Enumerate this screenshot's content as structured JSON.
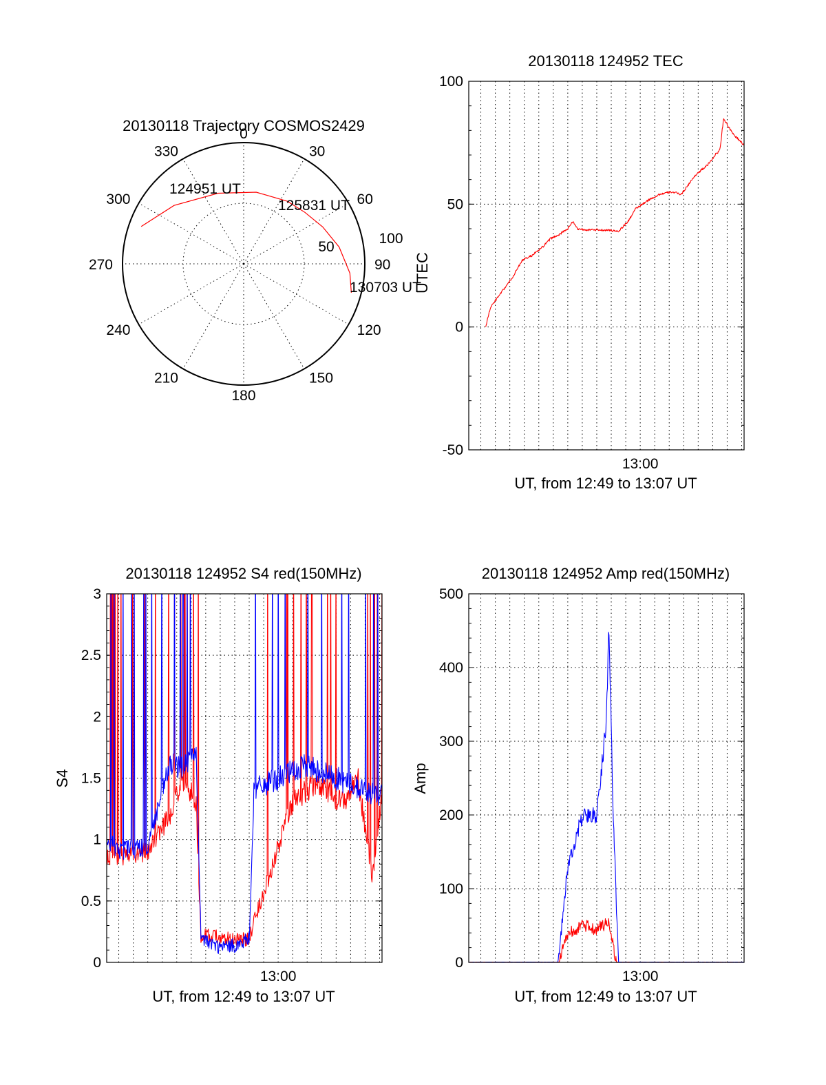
{
  "colors": {
    "red": "#ff0000",
    "blue": "#0000ff",
    "axes": "#000000"
  },
  "chart_data": [
    {
      "id": "trajectory",
      "type": "polar",
      "title": "20130118 Trajectory COSMOS2429",
      "angle_labels": [
        "0",
        "30",
        "60",
        "90",
        "120",
        "150",
        "180",
        "210",
        "240",
        "270",
        "300",
        "330"
      ],
      "radial_ticks": [
        50,
        100
      ],
      "radial_labels": [
        "50",
        "100"
      ],
      "rmax": 100,
      "grid": true,
      "annotations": [
        {
          "text": "124951 UT",
          "az": 290,
          "r": 90
        },
        {
          "text": "125831 UT",
          "az": 50,
          "r": 65
        },
        {
          "text": "130703 UT",
          "az": 105,
          "r": 92
        }
      ],
      "track": {
        "color": "#ff0000",
        "points": [
          [
            290,
            90
          ],
          [
            310,
            75
          ],
          [
            340,
            62
          ],
          [
            10,
            60
          ],
          [
            35,
            63
          ],
          [
            50,
            66
          ],
          [
            65,
            72
          ],
          [
            80,
            80
          ],
          [
            95,
            88
          ],
          [
            105,
            92
          ]
        ]
      }
    },
    {
      "id": "tec",
      "type": "line",
      "title": "20130118 124952 TEC",
      "xlabel": "UT, from 12:49 to 13:07 UT",
      "ylabel": "UTEC",
      "xlim": [
        "12:48:10",
        "13:07:10"
      ],
      "ylim": [
        -50,
        100
      ],
      "yticks": [
        -50,
        0,
        50,
        100
      ],
      "xticks": [
        {
          "t": "13:00",
          "label": "13:00"
        }
      ],
      "grid": true,
      "series": [
        {
          "color": "#ff0000",
          "x": [
            "12:49:20",
            "12:49:40",
            "12:50:10",
            "12:50:40",
            "12:51:10",
            "12:51:50",
            "12:52:30",
            "12:53:10",
            "12:53:50",
            "12:54:30",
            "12:55:00",
            "12:55:20",
            "12:55:40",
            "12:56:30",
            "12:57:30",
            "12:58:30",
            "12:59:10",
            "12:59:40",
            "13:00:10",
            "13:00:40",
            "13:01:20",
            "13:02:10",
            "13:02:50",
            "13:03:20",
            "13:03:50",
            "13:04:40",
            "13:05:10",
            "13:05:30",
            "13:05:45",
            "13:06:20",
            "13:07:10"
          ],
          "y": [
            0,
            8,
            12,
            16,
            20,
            27,
            29,
            32,
            36,
            38,
            40,
            43,
            40,
            39.5,
            39.5,
            39,
            43,
            48,
            50,
            52,
            54,
            55,
            54,
            58,
            62,
            66,
            70,
            72,
            85,
            79,
            74
          ]
        }
      ]
    },
    {
      "id": "s4",
      "type": "line",
      "title": "20130118 124952 S4 red(150MHz)",
      "xlabel": "UT, from 12:49 to 13:07 UT",
      "ylabel": "S4",
      "xlim": [
        "12:48:10",
        "13:07:10"
      ],
      "ylim": [
        0,
        3
      ],
      "yticks": [
        0,
        0.5,
        1,
        1.5,
        2,
        2.5,
        3
      ],
      "ytick_labels": [
        "0",
        "0.5",
        "1",
        "1.5",
        "2",
        "2.5",
        "3"
      ],
      "xticks": [
        {
          "t": "13:00",
          "label": "13:00"
        }
      ],
      "grid": true,
      "series": [
        {
          "color": "#ff0000",
          "x": [
            "12:48:10",
            "12:51:00",
            "12:52:30",
            "12:53:30",
            "12:54:20",
            "12:54:40",
            "12:57:30",
            "12:58:00",
            "13:01:00",
            "13:02:30",
            "13:04:30",
            "13:05:30",
            "13:06:30",
            "13:07:10"
          ],
          "y": [
            0.85,
            0.9,
            1.2,
            1.5,
            1.3,
            0.22,
            0.18,
            0.2,
            1.3,
            1.45,
            1.3,
            1.5,
            0.7,
            1.4
          ]
        },
        {
          "color": "#0000ff",
          "x": [
            "12:48:10",
            "12:49:00",
            "12:51:00",
            "12:52:30",
            "12:53:30",
            "12:54:20",
            "12:54:40",
            "12:56:00",
            "12:57:30",
            "12:58:00",
            "12:58:20",
            "13:00:00",
            "13:02:00",
            "13:04:00",
            "13:06:00",
            "13:07:10"
          ],
          "y": [
            1.0,
            0.9,
            0.95,
            1.6,
            1.6,
            1.7,
            0.2,
            0.12,
            0.15,
            0.2,
            1.4,
            1.5,
            1.6,
            1.5,
            1.4,
            1.35
          ]
        }
      ]
    },
    {
      "id": "amp",
      "type": "line",
      "title": "20130118 124952 Amp red(150MHz)",
      "xlabel": "UT, from 12:49 to 13:07 UT",
      "ylabel": "Amp",
      "xlim": [
        "12:48:10",
        "13:07:10"
      ],
      "ylim": [
        0,
        500
      ],
      "yticks": [
        0,
        100,
        200,
        300,
        400,
        500
      ],
      "xticks": [
        {
          "t": "13:00",
          "label": "13:00"
        }
      ],
      "grid": true,
      "series": [
        {
          "color": "#ff0000",
          "x": [
            "12:48:10",
            "12:54:20",
            "12:55:00",
            "12:56:00",
            "12:57:00",
            "12:57:50",
            "12:58:00",
            "12:58:20",
            "13:07:10"
          ],
          "y": [
            0,
            0,
            40,
            50,
            45,
            55,
            40,
            0,
            0
          ]
        },
        {
          "color": "#0000ff",
          "x": [
            "12:48:10",
            "12:54:20",
            "12:55:00",
            "12:56:00",
            "12:57:00",
            "12:57:40",
            "12:57:50",
            "12:58:10",
            "12:58:30",
            "13:07:10"
          ],
          "y": [
            0,
            0,
            130,
            200,
            200,
            330,
            460,
            180,
            0,
            0
          ]
        }
      ]
    }
  ]
}
